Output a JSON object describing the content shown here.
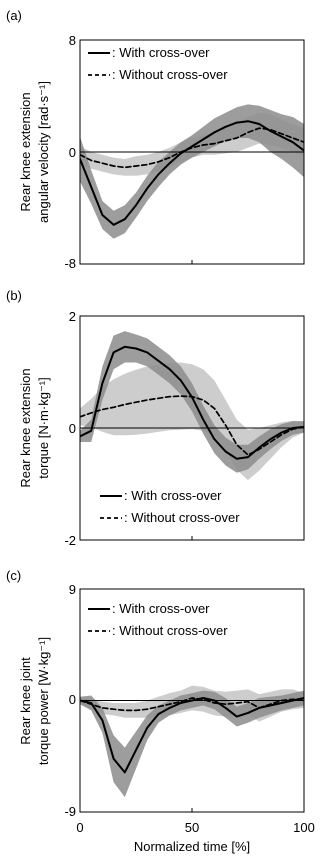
{
  "chart_data": [
    {
      "type": "line",
      "panel_label": "(a)",
      "ylabel_lines": [
        "Rear knee extension",
        "angular velocity [rad·s⁻¹]"
      ],
      "ylim": [
        -8,
        8
      ],
      "yticks": [
        "8",
        "0",
        "-8"
      ],
      "yticks_values": [
        8,
        0,
        -8
      ],
      "xlim": [
        0,
        100
      ],
      "legend_position": "top",
      "x": [
        0,
        5,
        10,
        15,
        20,
        25,
        30,
        35,
        40,
        45,
        50,
        55,
        60,
        65,
        70,
        75,
        80,
        85,
        90,
        95,
        100
      ],
      "series": [
        {
          "name": ": With cross-over",
          "style": "solid",
          "band_color": "#8c8c8c",
          "mean": [
            -0.5,
            -2.5,
            -4.5,
            -5.2,
            -4.8,
            -3.8,
            -2.6,
            -1.6,
            -0.8,
            -0.1,
            0.4,
            0.9,
            1.4,
            1.8,
            2.1,
            2.2,
            2.0,
            1.5,
            1.1,
            0.7,
            0.1
          ],
          "sd": [
            1.6,
            1.2,
            1.0,
            1.0,
            1.0,
            0.9,
            0.9,
            0.9,
            0.8,
            0.8,
            0.8,
            0.9,
            1.0,
            1.0,
            1.1,
            1.2,
            1.3,
            1.5,
            1.6,
            1.8,
            1.9
          ]
        },
        {
          "name": ": Without cross-over",
          "style": "dashed",
          "band_color": "#c8c8c8",
          "mean": [
            -0.2,
            -0.6,
            -0.8,
            -1.0,
            -1.1,
            -1.0,
            -0.9,
            -0.7,
            -0.4,
            0.0,
            0.3,
            0.5,
            0.6,
            0.8,
            1.0,
            1.4,
            1.7,
            1.6,
            1.3,
            1.0,
            0.7
          ],
          "sd": [
            0.6,
            0.6,
            0.6,
            0.6,
            0.6,
            0.7,
            0.7,
            0.7,
            0.7,
            0.7,
            0.7,
            0.7,
            0.8,
            0.9,
            1.0,
            1.1,
            1.1,
            1.1,
            1.0,
            1.0,
            1.0
          ]
        }
      ]
    },
    {
      "type": "line",
      "panel_label": "(b)",
      "ylabel_lines": [
        "Rear knee extension",
        "torque [N·m·kg⁻¹]"
      ],
      "ylim": [
        -2,
        2
      ],
      "yticks": [
        "2",
        "0",
        "-2"
      ],
      "yticks_values": [
        2,
        0,
        -2
      ],
      "xlim": [
        0,
        100
      ],
      "legend_position": "bottom",
      "x": [
        0,
        5,
        10,
        15,
        20,
        25,
        30,
        35,
        40,
        45,
        50,
        55,
        60,
        65,
        70,
        75,
        80,
        85,
        90,
        95,
        100
      ],
      "series": [
        {
          "name": ": With cross-over",
          "style": "solid",
          "band_color": "#8c8c8c",
          "mean": [
            -0.15,
            -0.05,
            0.8,
            1.35,
            1.45,
            1.42,
            1.35,
            1.2,
            1.05,
            0.85,
            0.55,
            0.15,
            -0.2,
            -0.42,
            -0.55,
            -0.52,
            -0.35,
            -0.2,
            -0.08,
            0.0,
            0.02
          ],
          "sd": [
            0.1,
            0.2,
            0.3,
            0.3,
            0.28,
            0.25,
            0.25,
            0.25,
            0.25,
            0.25,
            0.25,
            0.25,
            0.25,
            0.25,
            0.25,
            0.22,
            0.2,
            0.18,
            0.15,
            0.12,
            0.1
          ]
        },
        {
          "name": ": Without cross-over",
          "style": "dashed",
          "band_color": "#c8c8c8",
          "mean": [
            0.2,
            0.27,
            0.33,
            0.37,
            0.42,
            0.46,
            0.5,
            0.53,
            0.56,
            0.57,
            0.56,
            0.5,
            0.35,
            0.05,
            -0.3,
            -0.48,
            -0.38,
            -0.25,
            -0.12,
            -0.02,
            0.02
          ],
          "sd": [
            0.15,
            0.25,
            0.4,
            0.5,
            0.55,
            0.58,
            0.6,
            0.6,
            0.6,
            0.6,
            0.58,
            0.55,
            0.5,
            0.45,
            0.45,
            0.45,
            0.38,
            0.3,
            0.22,
            0.15,
            0.1
          ]
        }
      ]
    },
    {
      "type": "line",
      "panel_label": "(c)",
      "ylabel_lines": [
        "Rear knee joint",
        "torque power [W·kg⁻¹]"
      ],
      "ylim": [
        -9,
        9
      ],
      "yticks": [
        "9",
        "0",
        "-9"
      ],
      "yticks_values": [
        9,
        0,
        -9
      ],
      "xlim": [
        0,
        100
      ],
      "xticks": [
        "0",
        "50",
        "100"
      ],
      "xticks_values": [
        0,
        50,
        100
      ],
      "xlabel": "Normalized time [%]",
      "legend_position": "top",
      "x": [
        0,
        5,
        10,
        15,
        20,
        25,
        30,
        35,
        40,
        45,
        50,
        55,
        60,
        65,
        70,
        75,
        80,
        85,
        90,
        95,
        100
      ],
      "series": [
        {
          "name": ": With cross-over",
          "style": "solid",
          "band_color": "#8c8c8c",
          "mean": [
            0.0,
            -0.2,
            -1.6,
            -4.7,
            -5.8,
            -4.0,
            -2.2,
            -1.1,
            -0.6,
            -0.2,
            0.0,
            0.2,
            0.0,
            -0.6,
            -1.3,
            -1.0,
            -0.6,
            -0.4,
            -0.2,
            0.0,
            0.2
          ],
          "sd": [
            0.3,
            0.6,
            1.0,
            1.9,
            2.0,
            1.5,
            1.0,
            0.7,
            0.6,
            0.6,
            0.6,
            0.6,
            0.7,
            0.8,
            0.8,
            0.8,
            0.8,
            0.7,
            0.6,
            0.6,
            0.6
          ]
        },
        {
          "name": ": Without cross-over",
          "style": "dashed",
          "band_color": "#c8c8c8",
          "mean": [
            0.0,
            -0.3,
            -0.6,
            -0.7,
            -0.8,
            -0.8,
            -0.7,
            -0.5,
            -0.3,
            -0.1,
            0.2,
            0.1,
            -0.2,
            -0.3,
            -0.2,
            -0.1,
            -0.6,
            -0.3,
            0.0,
            0.1,
            0.0
          ],
          "sd": [
            0.3,
            0.4,
            0.5,
            0.5,
            0.6,
            0.6,
            0.7,
            0.8,
            0.9,
            0.9,
            1.0,
            1.0,
            1.0,
            1.0,
            1.0,
            1.0,
            1.1,
            1.0,
            0.9,
            0.8,
            0.6
          ]
        }
      ]
    }
  ]
}
